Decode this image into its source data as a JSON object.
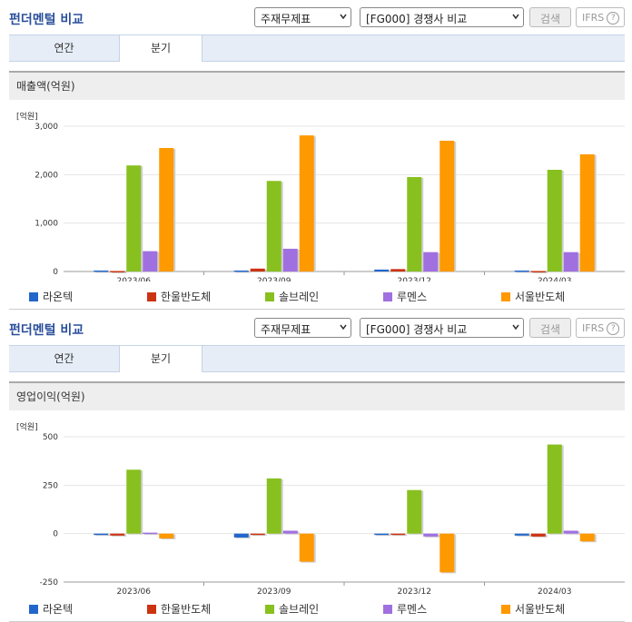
{
  "panels": [
    {
      "title": "펀더멘털 비교",
      "select1": "주재무제표",
      "select2": "[FG000] 경쟁사 비교",
      "search_label": "검색",
      "ifrs_label": "IFRS",
      "tabs": [
        "연간",
        "분기"
      ],
      "active_tab": 1,
      "section_title": "매출액(억원)"
    },
    {
      "title": "펀더멘털 비교",
      "select1": "주재무제표",
      "select2": "[FG000] 경쟁사 비교",
      "search_label": "검색",
      "ifrs_label": "IFRS",
      "tabs": [
        "연간",
        "분기"
      ],
      "active_tab": 1,
      "section_title": "영업이익(억원)"
    }
  ],
  "colors": [
    "#2266cc",
    "#cc3311",
    "#88c020",
    "#a070e0",
    "#ff9900"
  ],
  "chart_data": [
    {
      "type": "bar",
      "unit_label": "[억원]",
      "categories": [
        "2023/06",
        "2023/09",
        "2023/12",
        "2024/03"
      ],
      "ylim": [
        0,
        3000
      ],
      "yticks": [
        0,
        1000,
        2000,
        3000
      ],
      "ytick_labels": [
        "0",
        "1,000",
        "2,000",
        "3,000"
      ],
      "legend_position": "bottom",
      "series": [
        {
          "name": "라온텍",
          "values": [
            20,
            20,
            40,
            20
          ]
        },
        {
          "name": "한울반도체",
          "values": [
            10,
            60,
            50,
            10
          ]
        },
        {
          "name": "솔브레인",
          "values": [
            2190,
            1870,
            1950,
            2100
          ]
        },
        {
          "name": "루멘스",
          "values": [
            420,
            470,
            400,
            400
          ]
        },
        {
          "name": "서울반도체",
          "values": [
            2550,
            2810,
            2700,
            2420
          ]
        }
      ]
    },
    {
      "type": "bar",
      "unit_label": "[억원]",
      "categories": [
        "2023/06",
        "2023/09",
        "2023/12",
        "2024/03"
      ],
      "ylim": [
        -250,
        500
      ],
      "yticks": [
        -250,
        0,
        250,
        500
      ],
      "ytick_labels": [
        "-250",
        "0",
        "250",
        "500"
      ],
      "legend_position": "bottom",
      "series": [
        {
          "name": "라온텍",
          "values": [
            -5,
            -20,
            -5,
            -10
          ]
        },
        {
          "name": "한울반도체",
          "values": [
            -10,
            -5,
            -5,
            -15
          ]
        },
        {
          "name": "솔브레인",
          "values": [
            330,
            285,
            225,
            460
          ]
        },
        {
          "name": "루멘스",
          "values": [
            5,
            15,
            -15,
            15
          ]
        },
        {
          "name": "서울반도체",
          "values": [
            -25,
            -145,
            -200,
            -40
          ]
        }
      ]
    }
  ]
}
